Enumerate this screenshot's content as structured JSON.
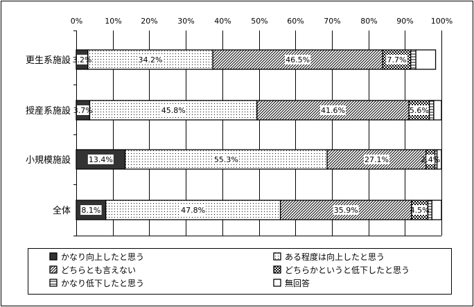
{
  "chart_data": {
    "type": "bar",
    "orientation": "horizontal",
    "stacked": true,
    "percent_scale": true,
    "categories": [
      "更生系施設",
      "授産系施設",
      "小規模施設",
      "全体"
    ],
    "series": [
      {
        "name": "かなり向上したと思う",
        "values": [
          3.2,
          3.7,
          13.4,
          8.1
        ],
        "labels": [
          "3.2%",
          "3.7%",
          "13.4%",
          "8.1%"
        ],
        "pattern": "solid",
        "color": "#333333"
      },
      {
        "name": "ある程度は向上したと思う",
        "values": [
          34.2,
          45.8,
          55.3,
          47.8
        ],
        "labels": [
          "34.2%",
          "45.8%",
          "55.3%",
          "47.8%"
        ],
        "pattern": "dots",
        "color": "#ffffff"
      },
      {
        "name": "どちらとも言えない",
        "values": [
          46.5,
          41.6,
          27.1,
          35.9
        ],
        "labels": [
          "46.5%",
          "41.6%",
          "27.1%",
          "35.9%"
        ],
        "pattern": "diagonal",
        "color": "#ffffff"
      },
      {
        "name": "どちらかというと低下したと思う",
        "values": [
          7.7,
          5.6,
          2.4,
          4.5
        ],
        "labels": [
          "7.7%",
          "5.6%",
          "2.4%",
          "4.5%"
        ],
        "pattern": "checker",
        "color": "#ffffff"
      },
      {
        "name": "かなり低下したと思う",
        "values": [
          1.4,
          1.2,
          0.6,
          1.1
        ],
        "labels": [
          "",
          "",
          "",
          ""
        ],
        "pattern": "hlines",
        "color": "#ffffff"
      },
      {
        "name": "無回答",
        "values": [
          5.4,
          2.1,
          1.2,
          2.6
        ],
        "labels": [
          "",
          "",
          "",
          ""
        ],
        "pattern": "blank",
        "color": "#ffffff"
      }
    ],
    "xticks": [
      "0%",
      "10%",
      "20%",
      "30%",
      "40%",
      "50%",
      "60%",
      "70%",
      "80%",
      "90%",
      "100%"
    ],
    "xlim": [
      0,
      100
    ],
    "grid": true,
    "legend_position": "bottom",
    "title": "",
    "xlabel": "",
    "ylabel": ""
  }
}
